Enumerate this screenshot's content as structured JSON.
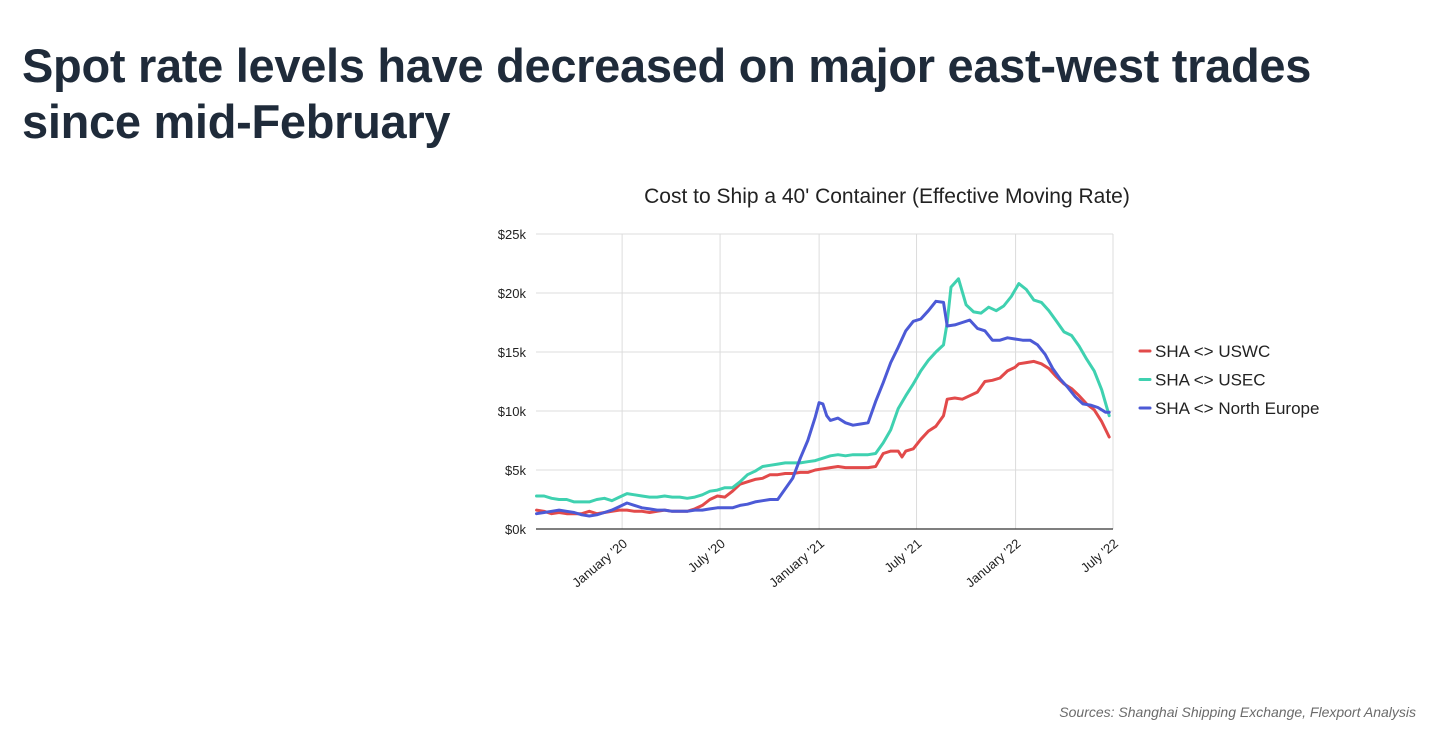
{
  "headline": {
    "line1": "Spot rate levels have decreased on major east-west trades",
    "line2": "since mid-February"
  },
  "source": "Sources: Shanghai Shipping Exchange, Flexport Analysis",
  "chart_data": {
    "type": "line",
    "title": "Cost to Ship a 40' Container (Effective Moving Rate)",
    "xlabel": "",
    "ylabel": "",
    "x_range": [
      "2019-07-25",
      "2022-07-01"
    ],
    "ylim": [
      0,
      25000
    ],
    "y_ticks": [
      0,
      5000,
      10000,
      15000,
      20000,
      25000
    ],
    "y_tick_labels": [
      "$0k",
      "$5k",
      "$10k",
      "$15k",
      "$20k",
      "$25k"
    ],
    "x_ticks": [
      "2020-01-01",
      "2020-07-01",
      "2021-01-01",
      "2021-07-01",
      "2022-01-01",
      "2022-07-01"
    ],
    "x_tick_labels": [
      "January '20",
      "July '20",
      "January '21",
      "July '21",
      "January '22",
      "July '22"
    ],
    "grid": true,
    "legend_position": "right",
    "series": [
      {
        "name": "SHA <> USWC",
        "color": "#e24a4a",
        "points": [
          [
            "2019-07-26",
            1600
          ],
          [
            "2019-08-09",
            1500
          ],
          [
            "2019-08-23",
            1300
          ],
          [
            "2019-09-06",
            1400
          ],
          [
            "2019-09-20",
            1300
          ],
          [
            "2019-10-04",
            1300
          ],
          [
            "2019-10-18",
            1300
          ],
          [
            "2019-11-01",
            1500
          ],
          [
            "2019-11-15",
            1300
          ],
          [
            "2019-11-29",
            1400
          ],
          [
            "2019-12-13",
            1500
          ],
          [
            "2019-12-27",
            1600
          ],
          [
            "2020-01-10",
            1600
          ],
          [
            "2020-01-24",
            1500
          ],
          [
            "2020-02-07",
            1500
          ],
          [
            "2020-02-21",
            1400
          ],
          [
            "2020-03-06",
            1500
          ],
          [
            "2020-03-20",
            1600
          ],
          [
            "2020-04-03",
            1500
          ],
          [
            "2020-04-17",
            1500
          ],
          [
            "2020-05-01",
            1500
          ],
          [
            "2020-05-15",
            1700
          ],
          [
            "2020-05-29",
            2000
          ],
          [
            "2020-06-12",
            2500
          ],
          [
            "2020-06-26",
            2800
          ],
          [
            "2020-07-10",
            2700
          ],
          [
            "2020-07-24",
            3200
          ],
          [
            "2020-08-07",
            3800
          ],
          [
            "2020-08-21",
            4000
          ],
          [
            "2020-09-04",
            4200
          ],
          [
            "2020-09-18",
            4300
          ],
          [
            "2020-10-02",
            4600
          ],
          [
            "2020-10-16",
            4600
          ],
          [
            "2020-10-30",
            4700
          ],
          [
            "2020-11-13",
            4700
          ],
          [
            "2020-11-27",
            4800
          ],
          [
            "2020-12-11",
            4800
          ],
          [
            "2020-12-25",
            5000
          ],
          [
            "2021-01-08",
            5100
          ],
          [
            "2021-01-22",
            5200
          ],
          [
            "2021-02-05",
            5300
          ],
          [
            "2021-02-19",
            5200
          ],
          [
            "2021-03-05",
            5200
          ],
          [
            "2021-03-19",
            5200
          ],
          [
            "2021-04-02",
            5200
          ],
          [
            "2021-04-16",
            5300
          ],
          [
            "2021-04-30",
            6400
          ],
          [
            "2021-05-14",
            6600
          ],
          [
            "2021-05-28",
            6600
          ],
          [
            "2021-06-04",
            6100
          ],
          [
            "2021-06-11",
            6600
          ],
          [
            "2021-06-25",
            6800
          ],
          [
            "2021-07-09",
            7600
          ],
          [
            "2021-07-23",
            8300
          ],
          [
            "2021-08-06",
            8700
          ],
          [
            "2021-08-20",
            9600
          ],
          [
            "2021-08-27",
            11000
          ],
          [
            "2021-09-10",
            11100
          ],
          [
            "2021-09-24",
            11000
          ],
          [
            "2021-10-08",
            11300
          ],
          [
            "2021-10-22",
            11600
          ],
          [
            "2021-11-05",
            12500
          ],
          [
            "2021-11-19",
            12600
          ],
          [
            "2021-12-03",
            12800
          ],
          [
            "2021-12-17",
            13400
          ],
          [
            "2021-12-31",
            13700
          ],
          [
            "2022-01-07",
            14000
          ],
          [
            "2022-01-21",
            14100
          ],
          [
            "2022-02-04",
            14200
          ],
          [
            "2022-02-18",
            14000
          ],
          [
            "2022-03-04",
            13600
          ],
          [
            "2022-03-18",
            12900
          ],
          [
            "2022-04-01",
            12300
          ],
          [
            "2022-04-15",
            11900
          ],
          [
            "2022-04-29",
            11300
          ],
          [
            "2022-05-13",
            10600
          ],
          [
            "2022-05-27",
            10100
          ],
          [
            "2022-06-10",
            9100
          ],
          [
            "2022-06-24",
            7800
          ]
        ]
      },
      {
        "name": "SHA <> USEC",
        "color": "#3fd1b0",
        "points": [
          [
            "2019-07-26",
            2800
          ],
          [
            "2019-08-09",
            2800
          ],
          [
            "2019-08-23",
            2600
          ],
          [
            "2019-09-06",
            2500
          ],
          [
            "2019-09-20",
            2500
          ],
          [
            "2019-10-04",
            2300
          ],
          [
            "2019-10-18",
            2300
          ],
          [
            "2019-11-01",
            2300
          ],
          [
            "2019-11-15",
            2500
          ],
          [
            "2019-11-29",
            2600
          ],
          [
            "2019-12-13",
            2400
          ],
          [
            "2019-12-27",
            2700
          ],
          [
            "2020-01-10",
            3000
          ],
          [
            "2020-01-24",
            2900
          ],
          [
            "2020-02-07",
            2800
          ],
          [
            "2020-02-21",
            2700
          ],
          [
            "2020-03-06",
            2700
          ],
          [
            "2020-03-20",
            2800
          ],
          [
            "2020-04-03",
            2700
          ],
          [
            "2020-04-17",
            2700
          ],
          [
            "2020-05-01",
            2600
          ],
          [
            "2020-05-15",
            2700
          ],
          [
            "2020-05-29",
            2900
          ],
          [
            "2020-06-12",
            3200
          ],
          [
            "2020-06-26",
            3300
          ],
          [
            "2020-07-10",
            3500
          ],
          [
            "2020-07-24",
            3500
          ],
          [
            "2020-08-07",
            4000
          ],
          [
            "2020-08-21",
            4600
          ],
          [
            "2020-09-04",
            4900
          ],
          [
            "2020-09-18",
            5300
          ],
          [
            "2020-10-02",
            5400
          ],
          [
            "2020-10-16",
            5500
          ],
          [
            "2020-10-30",
            5600
          ],
          [
            "2020-11-13",
            5600
          ],
          [
            "2020-11-27",
            5600
          ],
          [
            "2020-12-11",
            5700
          ],
          [
            "2020-12-25",
            5800
          ],
          [
            "2021-01-08",
            6000
          ],
          [
            "2021-01-22",
            6200
          ],
          [
            "2021-02-05",
            6300
          ],
          [
            "2021-02-19",
            6200
          ],
          [
            "2021-03-05",
            6300
          ],
          [
            "2021-03-19",
            6300
          ],
          [
            "2021-04-02",
            6300
          ],
          [
            "2021-04-16",
            6400
          ],
          [
            "2021-04-30",
            7300
          ],
          [
            "2021-05-14",
            8400
          ],
          [
            "2021-05-28",
            10200
          ],
          [
            "2021-06-11",
            11300
          ],
          [
            "2021-06-25",
            12300
          ],
          [
            "2021-07-09",
            13400
          ],
          [
            "2021-07-23",
            14300
          ],
          [
            "2021-08-06",
            15000
          ],
          [
            "2021-08-20",
            15600
          ],
          [
            "2021-08-27",
            17500
          ],
          [
            "2021-09-03",
            20500
          ],
          [
            "2021-09-17",
            21200
          ],
          [
            "2021-10-01",
            19000
          ],
          [
            "2021-10-15",
            18400
          ],
          [
            "2021-10-29",
            18300
          ],
          [
            "2021-11-12",
            18800
          ],
          [
            "2021-11-26",
            18500
          ],
          [
            "2021-12-10",
            18900
          ],
          [
            "2021-12-24",
            19700
          ],
          [
            "2022-01-07",
            20800
          ],
          [
            "2022-01-21",
            20300
          ],
          [
            "2022-02-04",
            19400
          ],
          [
            "2022-02-18",
            19200
          ],
          [
            "2022-03-04",
            18500
          ],
          [
            "2022-03-18",
            17600
          ],
          [
            "2022-04-01",
            16700
          ],
          [
            "2022-04-15",
            16400
          ],
          [
            "2022-04-29",
            15500
          ],
          [
            "2022-05-13",
            14400
          ],
          [
            "2022-05-27",
            13400
          ],
          [
            "2022-06-10",
            11800
          ],
          [
            "2022-06-24",
            9600
          ]
        ]
      },
      {
        "name": "SHA <> North Europe",
        "color": "#4c5ad6",
        "points": [
          [
            "2019-07-26",
            1300
          ],
          [
            "2019-08-09",
            1400
          ],
          [
            "2019-08-23",
            1500
          ],
          [
            "2019-09-06",
            1600
          ],
          [
            "2019-09-20",
            1500
          ],
          [
            "2019-10-04",
            1400
          ],
          [
            "2019-10-18",
            1200
          ],
          [
            "2019-11-01",
            1100
          ],
          [
            "2019-11-15",
            1200
          ],
          [
            "2019-11-29",
            1400
          ],
          [
            "2019-12-13",
            1600
          ],
          [
            "2019-12-27",
            1900
          ],
          [
            "2020-01-10",
            2200
          ],
          [
            "2020-01-24",
            2000
          ],
          [
            "2020-02-07",
            1800
          ],
          [
            "2020-02-21",
            1700
          ],
          [
            "2020-03-06",
            1600
          ],
          [
            "2020-03-20",
            1600
          ],
          [
            "2020-04-03",
            1500
          ],
          [
            "2020-04-17",
            1500
          ],
          [
            "2020-05-01",
            1500
          ],
          [
            "2020-05-15",
            1600
          ],
          [
            "2020-05-29",
            1600
          ],
          [
            "2020-06-12",
            1700
          ],
          [
            "2020-06-26",
            1800
          ],
          [
            "2020-07-10",
            1800
          ],
          [
            "2020-07-24",
            1800
          ],
          [
            "2020-08-07",
            2000
          ],
          [
            "2020-08-21",
            2100
          ],
          [
            "2020-09-04",
            2300
          ],
          [
            "2020-09-18",
            2400
          ],
          [
            "2020-10-02",
            2500
          ],
          [
            "2020-10-16",
            2500
          ],
          [
            "2020-10-30",
            3400
          ],
          [
            "2020-11-13",
            4300
          ],
          [
            "2020-11-27",
            6000
          ],
          [
            "2020-12-11",
            7500
          ],
          [
            "2020-12-25",
            9500
          ],
          [
            "2021-01-01",
            10700
          ],
          [
            "2021-01-08",
            10600
          ],
          [
            "2021-01-15",
            9600
          ],
          [
            "2021-01-22",
            9200
          ],
          [
            "2021-02-05",
            9400
          ],
          [
            "2021-02-19",
            9000
          ],
          [
            "2021-03-05",
            8800
          ],
          [
            "2021-03-19",
            8900
          ],
          [
            "2021-04-02",
            9000
          ],
          [
            "2021-04-16",
            10800
          ],
          [
            "2021-04-30",
            12400
          ],
          [
            "2021-05-14",
            14100
          ],
          [
            "2021-05-28",
            15400
          ],
          [
            "2021-06-11",
            16800
          ],
          [
            "2021-06-25",
            17600
          ],
          [
            "2021-07-09",
            17800
          ],
          [
            "2021-07-23",
            18500
          ],
          [
            "2021-08-06",
            19300
          ],
          [
            "2021-08-20",
            19200
          ],
          [
            "2021-08-27",
            17200
          ],
          [
            "2021-09-10",
            17300
          ],
          [
            "2021-09-24",
            17500
          ],
          [
            "2021-10-08",
            17700
          ],
          [
            "2021-10-22",
            17000
          ],
          [
            "2021-11-05",
            16800
          ],
          [
            "2021-11-19",
            16000
          ],
          [
            "2021-12-03",
            16000
          ],
          [
            "2021-12-17",
            16200
          ],
          [
            "2021-12-31",
            16100
          ],
          [
            "2022-01-14",
            16000
          ],
          [
            "2022-01-28",
            16000
          ],
          [
            "2022-02-11",
            15600
          ],
          [
            "2022-02-25",
            14800
          ],
          [
            "2022-03-11",
            13600
          ],
          [
            "2022-03-25",
            12700
          ],
          [
            "2022-04-08",
            12000
          ],
          [
            "2022-04-22",
            11200
          ],
          [
            "2022-05-06",
            10600
          ],
          [
            "2022-05-20",
            10500
          ],
          [
            "2022-06-03",
            10300
          ],
          [
            "2022-06-17",
            9900
          ],
          [
            "2022-06-24",
            9900
          ]
        ]
      }
    ]
  }
}
